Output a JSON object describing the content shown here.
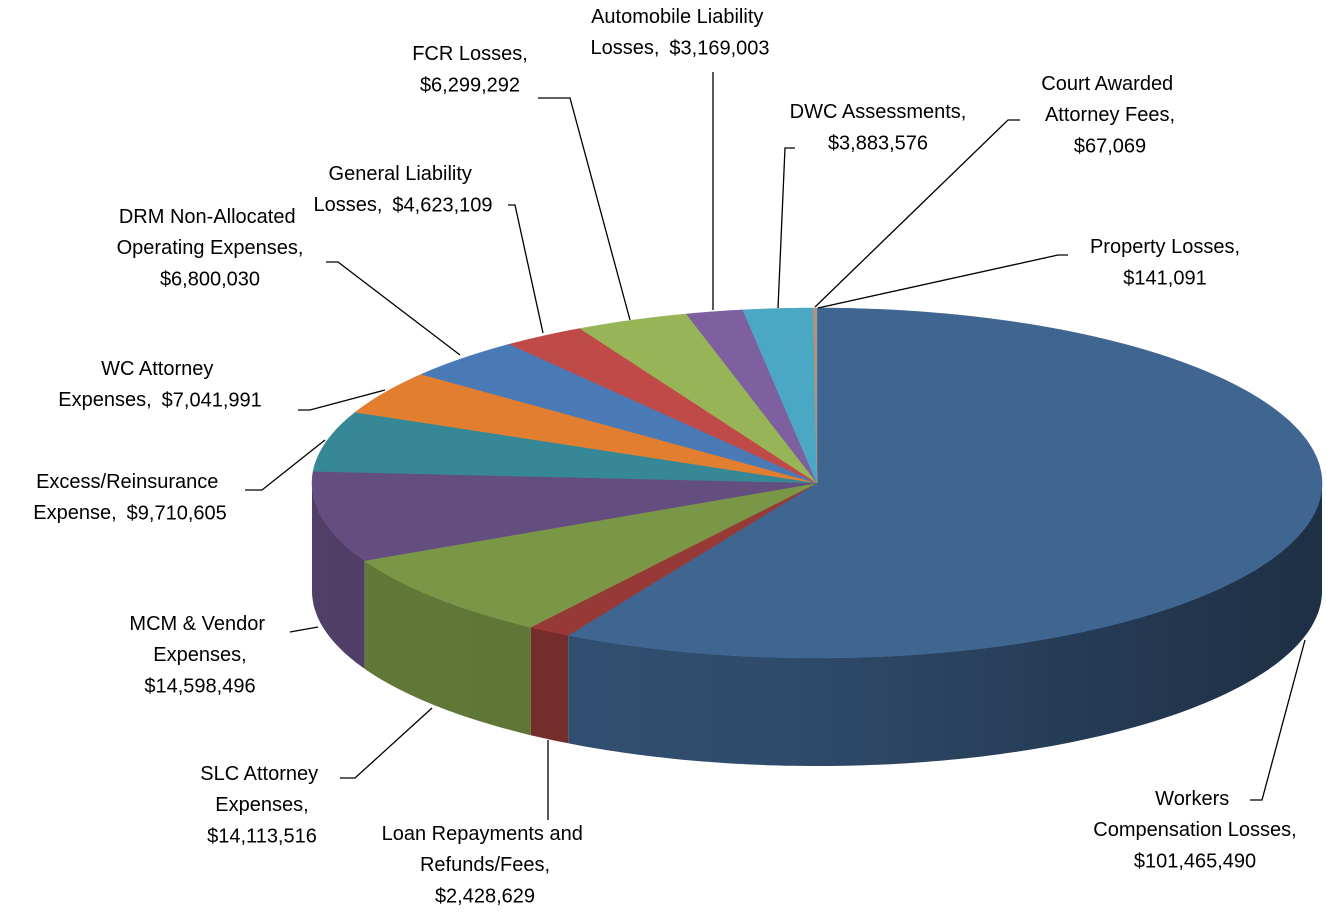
{
  "chart_data": {
    "type": "pie3d",
    "categories": [
      "Workers Compensation Losses,",
      "Loan Repayments and Refunds/Fees,",
      "SLC Attorney Expenses,",
      "MCM & Vendor Expenses,",
      "Excess/Reinsurance Expense,",
      "WC Attorney Expenses,",
      "DRM Non-Allocated Operating Expenses,",
      "General Liability Losses,",
      "FCR Losses,",
      "Automobile Liability Losses,",
      "DWC Assessments,",
      "Court Awarded Attorney Fees,",
      "Property Losses,"
    ],
    "values": [
      101465490,
      2428629,
      14113516,
      14598496,
      9710605,
      7041991,
      6800030,
      4623109,
      6299292,
      3169003,
      3883576,
      67069,
      141091
    ],
    "value_labels": [
      "$101,465,490",
      "$2,428,629",
      "$14,113,516",
      "$14,598,496",
      "$9,710,605",
      "$7,041,991",
      "$6,800,030",
      "$4,623,109",
      "$6,299,292",
      "$3,169,003",
      "$3,883,576",
      "$67,069",
      "$141,091"
    ],
    "colors": [
      "#3f6591",
      "#973a37",
      "#7a9747",
      "#644e80",
      "#378897",
      "#e27e30",
      "#4a7ab6",
      "#c04a48",
      "#97b556",
      "#7e60a0",
      "#4aa8c4",
      "#e8843a",
      "#9a9a9a"
    ]
  }
}
